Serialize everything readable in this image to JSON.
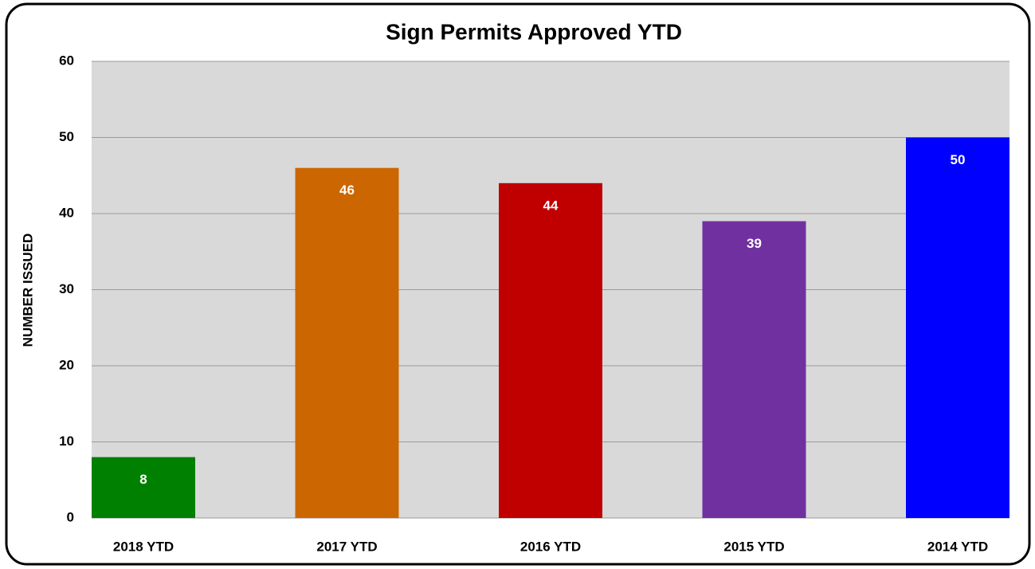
{
  "chart_data": {
    "type": "bar",
    "title": "Sign Permits Approved YTD",
    "y_label": "NUMBER ISSUED",
    "categories": [
      "2018 YTD",
      "2017 YTD",
      "2016 YTD",
      "2015 YTD",
      "2014 YTD"
    ],
    "values": [
      8,
      46,
      44,
      39,
      50
    ],
    "colors": [
      "#008000",
      "#cc6600",
      "#c00000",
      "#7030a0",
      "#0000ff"
    ],
    "ylim": [
      0,
      60
    ],
    "yticks": [
      0,
      10,
      20,
      30,
      40,
      50,
      60
    ],
    "grid": true
  }
}
